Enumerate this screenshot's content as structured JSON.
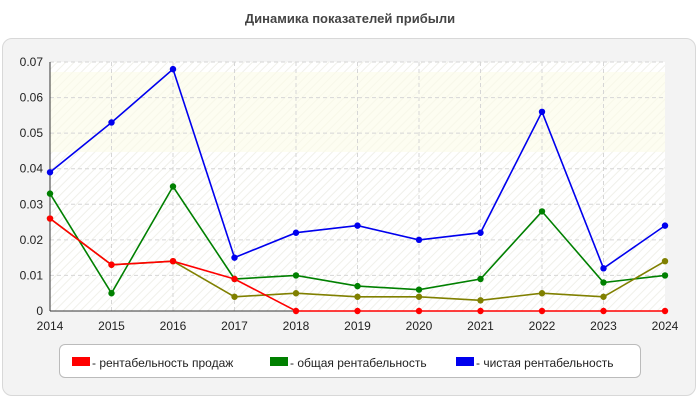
{
  "chart_data": {
    "type": "line",
    "title": "Динамика показателей прибыли",
    "x": [
      "2014",
      "2015",
      "2016",
      "2017",
      "2018",
      "2019",
      "2020",
      "2021",
      "2022",
      "2023",
      "2024"
    ],
    "y_ticks": [
      "0",
      "0.01",
      "0.02",
      "0.03",
      "0.04",
      "0.05",
      "0.06",
      "0.07"
    ],
    "ylim": [
      0,
      0.07
    ],
    "grid": true,
    "legend_position": "bottom",
    "series": [
      {
        "name": "- рентабельность продаж",
        "color": "#ff0000",
        "values": [
          0.026,
          0.013,
          0.014,
          0.009,
          0,
          0,
          0,
          0,
          0,
          0,
          0
        ]
      },
      {
        "name": "- общая рентабельность",
        "color": "#008000",
        "values": [
          0.033,
          0.005,
          0.035,
          0.009,
          0.01,
          0.007,
          0.006,
          0.009,
          0.028,
          0.008,
          0.01
        ]
      },
      {
        "name": "- чистая рентабельность",
        "color": "#0000ee",
        "values": [
          0.039,
          0.053,
          0.068,
          0.015,
          0.022,
          0.024,
          0.02,
          0.022,
          0.056,
          0.012,
          0.024
        ]
      },
      {
        "name": "",
        "color": "#808000",
        "values": [
          0.026,
          0.013,
          0.014,
          0.004,
          0.005,
          0.004,
          0.004,
          0.003,
          0.005,
          0.004,
          0.014
        ]
      }
    ]
  }
}
